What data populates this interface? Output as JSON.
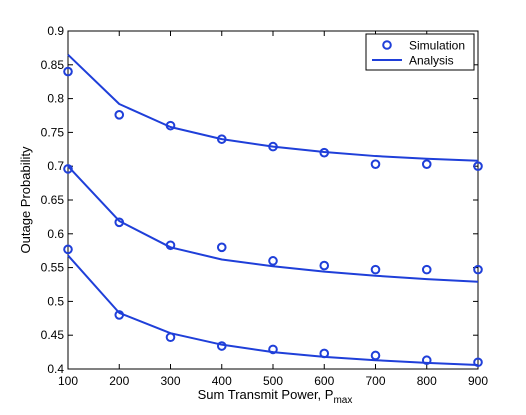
{
  "chart_data": {
    "type": "line",
    "title": "",
    "xlabel": "Sum Transmit Power, P",
    "xlabel_subscript": "max",
    "ylabel": "Outage Probability",
    "xlim": [
      100,
      900
    ],
    "ylim": [
      0.4,
      0.9
    ],
    "x_ticks": [
      "100",
      "200",
      "300",
      "400",
      "500",
      "600",
      "700",
      "800",
      "900"
    ],
    "y_ticks": [
      "0.4",
      "0.45",
      "0.5",
      "0.55",
      "0.6",
      "0.65",
      "0.7",
      "0.75",
      "0.8",
      "0.85",
      "0.9"
    ],
    "grid": false,
    "legend_position": "top-right",
    "legend": {
      "simulation_label": "Simulation",
      "analysis_label": "Analysis"
    },
    "color": "#1f3fd9",
    "x": [
      100,
      200,
      300,
      400,
      500,
      600,
      700,
      800,
      900
    ],
    "groups": [
      {
        "simulation": [
          0.84,
          0.776,
          0.76,
          0.74,
          0.729,
          0.72,
          0.703,
          0.703,
          0.7
        ],
        "analysis": [
          0.865,
          0.792,
          0.758,
          0.74,
          0.729,
          0.721,
          0.715,
          0.711,
          0.708
        ]
      },
      {
        "simulation": [
          0.696,
          0.617,
          0.583,
          0.58,
          0.56,
          0.553,
          0.547,
          0.547,
          0.547
        ],
        "analysis": [
          0.7,
          0.619,
          0.58,
          0.562,
          0.552,
          0.544,
          0.538,
          0.533,
          0.529
        ]
      },
      {
        "simulation": [
          0.577,
          0.48,
          0.447,
          0.434,
          0.429,
          0.423,
          0.42,
          0.413,
          0.41
        ],
        "analysis": [
          0.568,
          0.483,
          0.453,
          0.436,
          0.425,
          0.418,
          0.413,
          0.409,
          0.406
        ]
      }
    ]
  }
}
